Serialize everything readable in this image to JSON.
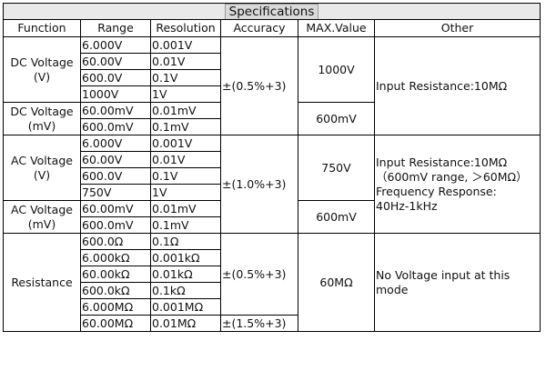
{
  "title": "Specifications",
  "headers": {
    "function": "Function",
    "range": "Range",
    "resolution": "Resolution",
    "accuracy": "Accuracy",
    "max": "MAX.Value",
    "other": "Other"
  },
  "dcv": {
    "function_line1": "DC Voltage",
    "function_line2": "(V)",
    "rows": [
      {
        "range": "6.000V",
        "resolution": "0.001V"
      },
      {
        "range": "60.00V",
        "resolution": "0.01V"
      },
      {
        "range": "600.0V",
        "resolution": "0.1V"
      },
      {
        "range": "1000V",
        "resolution": "1V"
      }
    ],
    "max": "1000V"
  },
  "dcmv": {
    "function_line1": "DC Voltage",
    "function_line2": "(mV)",
    "rows": [
      {
        "range": "60.00mV",
        "resolution": "0.01mV"
      },
      {
        "range": "600.0mV",
        "resolution": "0.1mV"
      }
    ],
    "max": "600mV"
  },
  "dc_accuracy": "±(0.5%+3)",
  "dc_other": "Input Resistance:10MΩ",
  "acv": {
    "function_line1": "AC Voltage",
    "function_line2": "(V)",
    "rows": [
      {
        "range": "6.000V",
        "resolution": "0.001V"
      },
      {
        "range": "60.00V",
        "resolution": "0.01V"
      },
      {
        "range": "600.0V",
        "resolution": "0.1V"
      },
      {
        "range": "750V",
        "resolution": "1V"
      }
    ],
    "max": "750V"
  },
  "acmv": {
    "function_line1": "AC Voltage",
    "function_line2": "(mV)",
    "rows": [
      {
        "range": "60.00mV",
        "resolution": "0.01mV"
      },
      {
        "range": "600.0mV",
        "resolution": "0.1mV"
      }
    ],
    "max": "600mV"
  },
  "ac_accuracy": "±(1.0%+3)",
  "ac_other": {
    "line1": "Input Resistance:10MΩ",
    "line2": "（600mV range, ＞60MΩ）",
    "line3": "Frequency Response:",
    "line4": "40Hz-1kHz"
  },
  "resistance": {
    "function": "Resistance",
    "rows": [
      {
        "range": "600.0Ω",
        "resolution": "0.1Ω"
      },
      {
        "range": "6.000kΩ",
        "resolution": "0.001kΩ"
      },
      {
        "range": "60.00kΩ",
        "resolution": "0.01kΩ"
      },
      {
        "range": "600.0kΩ",
        "resolution": "0.1kΩ"
      },
      {
        "range": "6.000MΩ",
        "resolution": "0.001MΩ"
      },
      {
        "range": "60.00MΩ",
        "resolution": "0.01MΩ"
      }
    ],
    "accuracy_main": "±(0.5%+3)",
    "accuracy_last": "±(1.5%+3)",
    "max": "60MΩ",
    "other_line1": "No Voltage input at this",
    "other_line2": "mode"
  }
}
